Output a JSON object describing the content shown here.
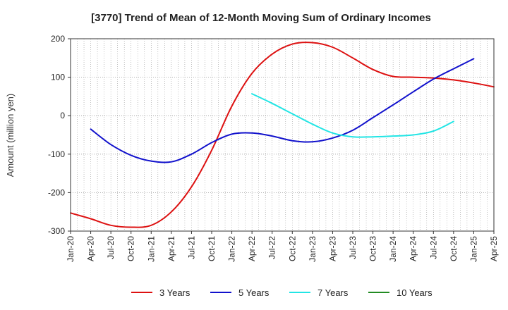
{
  "chart_data": {
    "type": "line",
    "title": "[3770]  Trend of Mean of 12-Month Moving Sum of Ordinary Incomes",
    "xlabel": "",
    "ylabel": "Amount (million yen)",
    "ylim": [
      -300,
      200
    ],
    "yticks": [
      200,
      100,
      0,
      -100,
      -200,
      -300
    ],
    "xlim": [
      "Jan-20",
      "Apr-25"
    ],
    "xticks": [
      "Jan-20",
      "Apr-20",
      "Jul-20",
      "Oct-20",
      "Jan-21",
      "Apr-21",
      "Jul-21",
      "Oct-21",
      "Jan-22",
      "Apr-22",
      "Jul-22",
      "Oct-22",
      "Jan-23",
      "Apr-23",
      "Jul-23",
      "Oct-23",
      "Jan-24",
      "Apr-24",
      "Jul-24",
      "Oct-24",
      "Jan-25",
      "Apr-25"
    ],
    "grid": true,
    "legend_position": "bottom",
    "series": [
      {
        "name": "3 Years",
        "color": "#dd1111",
        "start": "Jan-20",
        "quarterly_values": [
          -253,
          -268,
          -285,
          -290,
          -285,
          -250,
          -185,
          -90,
          25,
          110,
          160,
          186,
          190,
          178,
          150,
          120,
          102,
          100,
          98,
          93,
          85,
          75
        ]
      },
      {
        "name": "5 Years",
        "color": "#1111cc",
        "start": "Apr-20",
        "quarterly_values": [
          -35,
          -75,
          -103,
          -118,
          -120,
          -100,
          -70,
          -48,
          -45,
          -53,
          -65,
          -68,
          -58,
          -38,
          -5,
          28,
          62,
          95,
          122,
          148
        ]
      },
      {
        "name": "7 Years",
        "color": "#22e5e5",
        "start": "Apr-22",
        "quarterly_values": [
          57,
          32,
          5,
          -22,
          -45,
          -55,
          -55,
          -53,
          -50,
          -40,
          -15
        ]
      },
      {
        "name": "10 Years",
        "color": "#228b22",
        "start": "Jan-20",
        "quarterly_values": []
      }
    ]
  }
}
